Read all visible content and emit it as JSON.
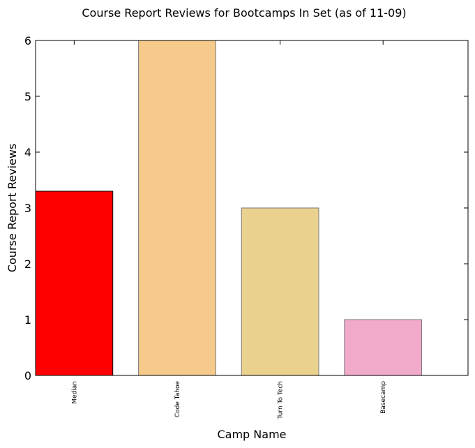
{
  "chart_data": {
    "type": "bar",
    "title": "Course Report Reviews for Bootcamps In Set (as of 11-09)",
    "xlabel": "Camp Name",
    "ylabel": "Course Report Reviews",
    "categories": [
      "Median",
      "Code Tahoe",
      "Turn To Tech",
      "Basecamp"
    ],
    "values": [
      3.3,
      6,
      3,
      1
    ],
    "colors": [
      "#ff0000",
      "#f5ca8a",
      "#ead18e",
      "#f2aacb"
    ],
    "edge_colors": [
      "#000000",
      "#777777",
      "#777777",
      "#777777"
    ],
    "ylim": [
      0,
      6
    ],
    "yticks": [
      "0",
      "1",
      "2",
      "3",
      "4",
      "5",
      "6"
    ],
    "grid": false
  }
}
